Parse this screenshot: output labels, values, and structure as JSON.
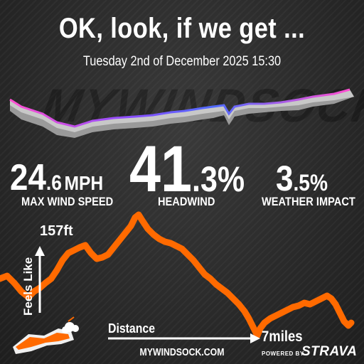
{
  "header": {
    "title": "OK, look, if we get ...",
    "datetime": "Tuesday 2nd of December 2025 15:30"
  },
  "watermark": "MYWINDSOCK",
  "stats": {
    "max_wind_speed": {
      "whole": "24",
      "decimal": ".6",
      "unit": "MPH",
      "label": "MAX WIND SPEED"
    },
    "headwind": {
      "whole": "41",
      "decimal": ".3%",
      "label": "HEADWIND"
    },
    "weather_impact": {
      "whole": "3",
      "decimal": ".5%",
      "label": "WEATHER IMPACT"
    }
  },
  "elevation": {
    "max_label": "157ft",
    "axis_label": "Feels Like",
    "distance_label": "Distance",
    "distance_value": "7miles",
    "line_color": "#ff6a00"
  },
  "footer": {
    "site": "MYWINDSOCK.COM",
    "powered_by": "POWERED BY",
    "brand": "STRAVA"
  },
  "icons": {
    "logo": "mywindsock-logo-icon",
    "route": "route-ribbon-icon"
  }
}
